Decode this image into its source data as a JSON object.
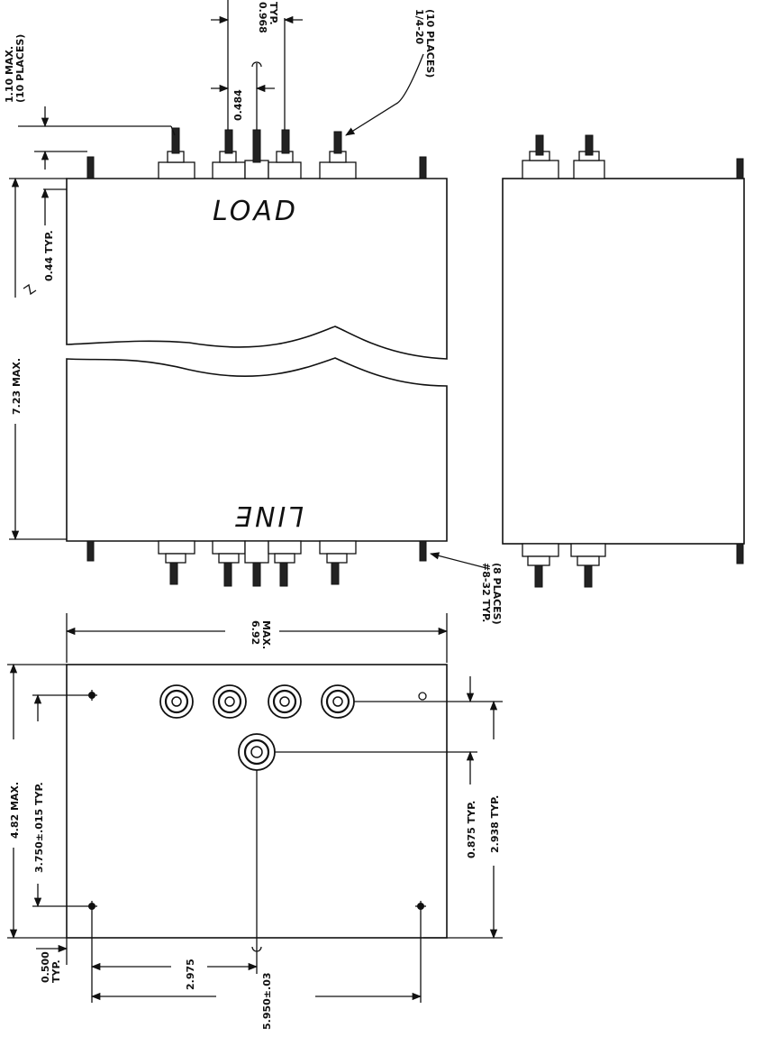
{
  "drawing": {
    "front_view": {
      "top_label": "LOAD",
      "bottom_label": "LINE"
    },
    "dimensions": {
      "terminal_pitch": "0.968",
      "terminal_pitch_note": "TYP.",
      "terminal_gap": "0.484",
      "stud_height": "1.10 MAX.",
      "stud_height_note": "(10 PLACES)",
      "terminal_thread": "1/4-20",
      "terminal_thread_note": "(10 PLACES)",
      "stud_offset": "0.44 TYP.",
      "body_height": "7.23 MAX.",
      "mount_thread": "#8-32 TYP.",
      "mount_thread_note": "(8 PLACES)",
      "overall_width": "6.92",
      "overall_width_note": "MAX.",
      "overall_depth": "4.82 MAX.",
      "mount_spacing_y": "3.750±.015 TYP.",
      "edge_offset": "0.500",
      "edge_offset_note": "TYP.",
      "center_offset": "2.975",
      "mount_spacing_x": "5.950±.03",
      "terminal_row_offset": "0.875 TYP.",
      "terminal_span": "2.938 TYP."
    }
  }
}
